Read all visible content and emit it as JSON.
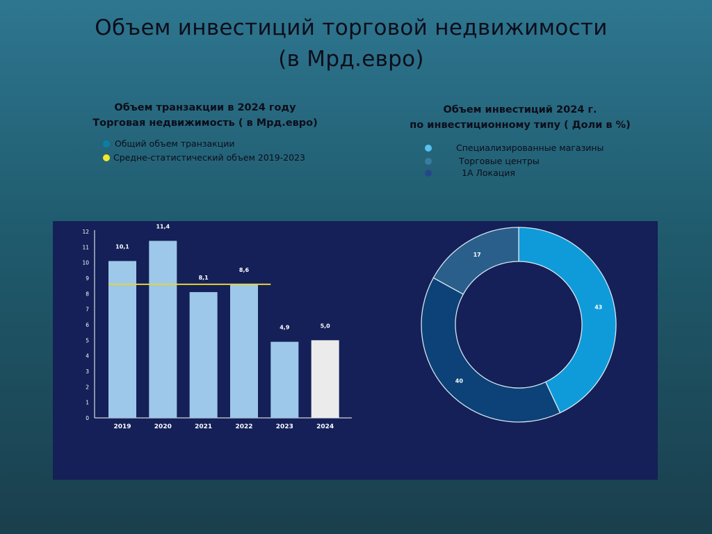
{
  "page": {
    "title_line1": "Объем инвестиций торговой недвижимости",
    "title_line2": "(в Мрд.евро)"
  },
  "chart_data": [
    {
      "type": "bar",
      "title_line1": "Объем транзакции в 2024 году",
      "title_line2": "Торговая недвижимость ( в Мрд.евро)",
      "categories": [
        "2019",
        "2020",
        "2021",
        "2022",
        "2023",
        "2024"
      ],
      "series": [
        {
          "name": "Общий объем транзакции",
          "values": [
            10.1,
            11.4,
            8.1,
            8.6,
            4.9,
            5.0
          ],
          "labels": [
            "10,1",
            "11,4",
            "8,1",
            "8,6",
            "4,9",
            "5,0"
          ],
          "color": "#9ec8e9",
          "highlight_color": "#ebebeb"
        }
      ],
      "reference_line": {
        "name": "Средне-статистический объем 2019-2023",
        "value": 8.6,
        "span": [
          "2019",
          "2023"
        ],
        "color": "#e6d23a"
      },
      "legend": [
        {
          "label": "Общий объем транзакции",
          "color": "#0a7fa6"
        },
        {
          "label": "Средне-статистический объем 2019-2023",
          "color": "#f1e92a"
        }
      ],
      "ylim": [
        0,
        12
      ],
      "yticks": [
        "0",
        "1",
        "2",
        "3",
        "4",
        "5",
        "6",
        "7",
        "8",
        "9",
        "10",
        "11",
        "12"
      ],
      "legend_placement": "top-left",
      "grid": false
    },
    {
      "type": "pie",
      "donut": true,
      "title_line1": "Объем инвестиций  2024 г.",
      "title_line2": "по инвестиционному типу ( Доли в %)",
      "slices": [
        {
          "label": "Специализированные магазины",
          "value": 43,
          "color": "#0f9bd9",
          "legend_color": "#57c1f2"
        },
        {
          "label": "1А Локация",
          "value": 40,
          "color": "#0c4277",
          "legend_color": "#24478c"
        },
        {
          "label": "Торговые центры",
          "value": 17,
          "color": "#2a5f8b",
          "legend_color": "#3a7ba1"
        }
      ],
      "legend_order": [
        "Специализированные магазины",
        "Торговые центры",
        "1А Локация"
      ],
      "legend_placement": "top"
    }
  ]
}
